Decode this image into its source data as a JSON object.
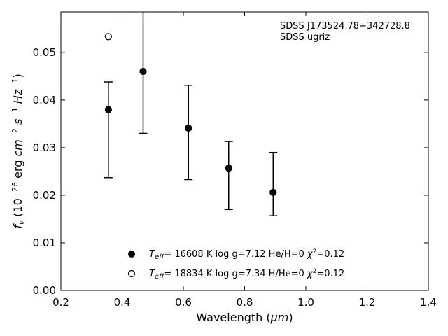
{
  "chart_data": {
    "type": "scatter",
    "xlabel_main": "Wavelength (",
    "xlabel_unit": "μm",
    "xlabel_close": ")",
    "ylabel_f": "f",
    "ylabel_sub": "ν",
    "ylabel_a": " (10",
    "ylabel_exp1": "−26",
    "ylabel_b": " erg ",
    "ylabel_cm": "cm",
    "ylabel_exp2": "−2",
    "ylabel_s": "s",
    "ylabel_exp3": "−1",
    "ylabel_hz": "Hz",
    "ylabel_exp4": "−1",
    "ylabel_c": ")",
    "xlim": [
      0.2,
      1.4
    ],
    "ylim": [
      0.0,
      0.0585
    ],
    "xticks": [
      "0.2",
      "0.4",
      "0.6",
      "0.8",
      "1.0",
      "1.2",
      "1.4"
    ],
    "yticks": [
      "0.00",
      "0.01",
      "0.02",
      "0.03",
      "0.04",
      "0.05"
    ],
    "grid": false,
    "annotation_lines": [
      "SDSS J173524.78+342728.8",
      "SDSS ugriz"
    ],
    "observed": {
      "x": [
        0.3551,
        0.4686,
        0.6166,
        0.748,
        0.8932
      ],
      "y": [
        0.038,
        0.046,
        0.0341,
        0.0257,
        0.0206
      ],
      "yerr_low": [
        0.0237,
        0.033,
        0.0233,
        0.017,
        0.0157
      ],
      "yerr_high": [
        0.0438,
        0.0585,
        0.0431,
        0.0313,
        0.029
      ]
    },
    "series": [
      {
        "marker": "filled",
        "label_T": "T",
        "label_Tsub": "eff",
        "label_rest": "= 16608 K  log g=7.12  He/H=0  ",
        "label_chi": "χ",
        "label_chiexp": "2",
        "label_chirest": "=0.12",
        "x": [
          0.3551,
          0.4686,
          0.6166,
          0.748,
          0.8932
        ],
        "y": [
          0.038,
          0.046,
          0.0341,
          0.0257,
          0.0206
        ]
      },
      {
        "marker": "open",
        "label_T": "T",
        "label_Tsub": "eff",
        "label_rest": "= 18834 K  log g=7.34  H/He=0  ",
        "label_chi": "χ",
        "label_chiexp": "2",
        "label_chirest": "=0.12",
        "x": [
          0.3551
        ],
        "y": [
          0.0533
        ]
      }
    ]
  }
}
